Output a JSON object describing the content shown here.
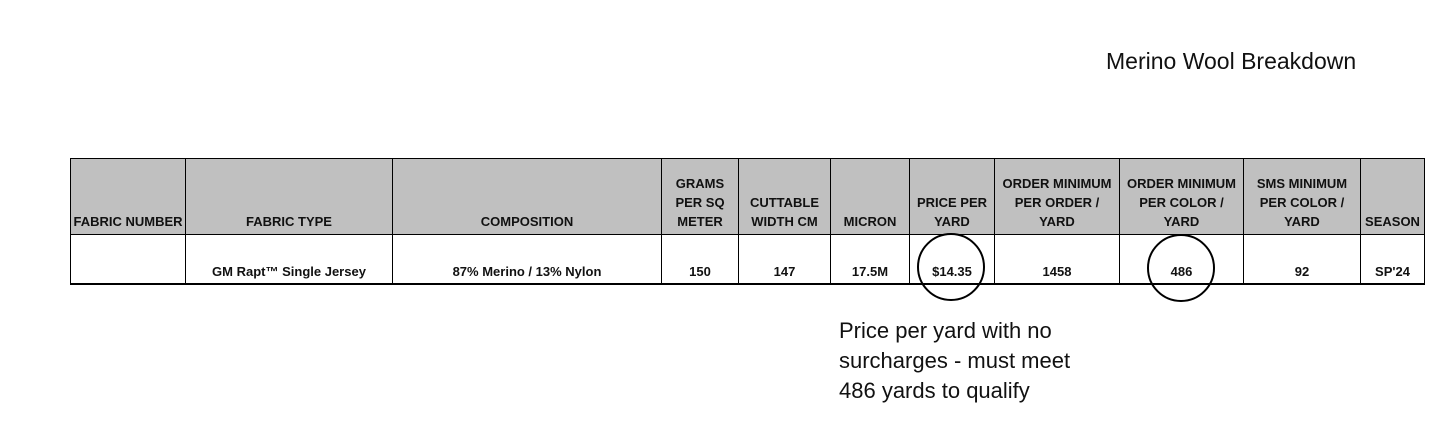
{
  "header": {
    "title": "Merino Wool Breakdown"
  },
  "table": {
    "columns": [
      "FABRIC NUMBER",
      "FABRIC TYPE",
      "COMPOSITION",
      "GRAMS PER SQ METER",
      "CUTTABLE WIDTH CM",
      "MICRON",
      "PRICE PER YARD",
      "ORDER MINIMUM PER ORDER / YARD",
      "ORDER MINIMUM PER COLOR / YARD",
      "SMS MINIMUM PER COLOR / YARD",
      "SEASON"
    ],
    "rows": [
      [
        null,
        "GM Rapt™ Single Jersey",
        "87% Merino / 13% Nylon",
        "150",
        "147",
        "17.5M",
        "$14.35",
        "1458",
        "486",
        "92",
        "SP'24"
      ]
    ]
  },
  "annotation": {
    "lines": [
      "Price per yard with no",
      "surcharges - must meet",
      "486 yards to qualify"
    ]
  }
}
